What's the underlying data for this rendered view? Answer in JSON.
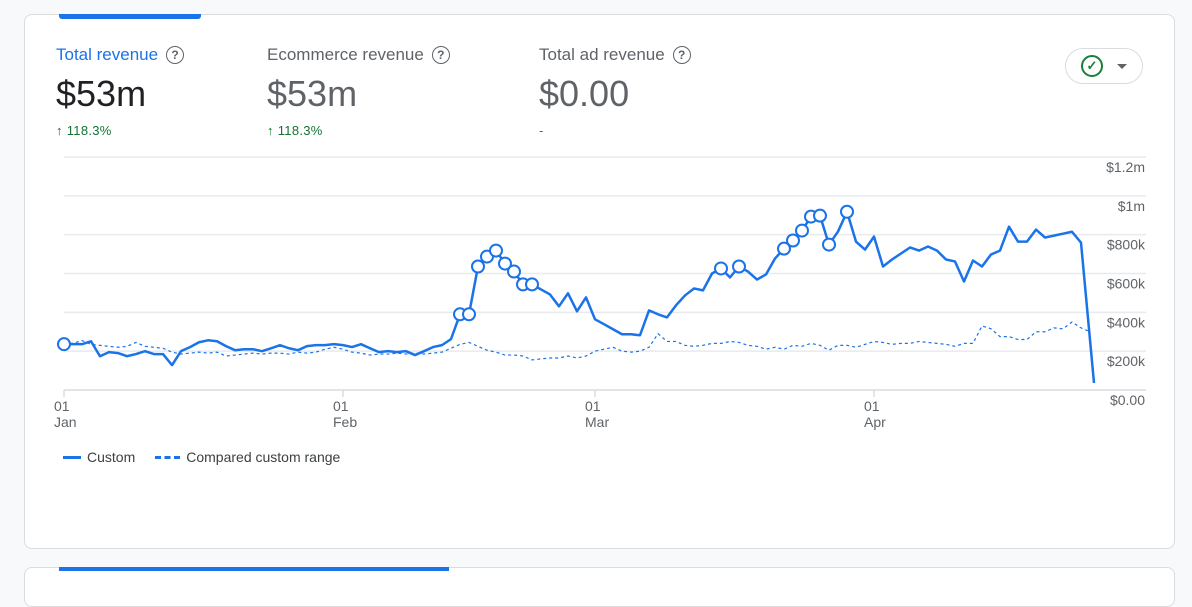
{
  "metrics": [
    {
      "label": "Total revenue",
      "value": "$53m",
      "change": "118.3%",
      "change_icon": "arrow-up-icon",
      "active": true
    },
    {
      "label": "Ecommerce revenue",
      "value": "$53m",
      "change": "118.3%",
      "change_icon": "arrow-up-icon",
      "active": false
    },
    {
      "label": "Total ad revenue",
      "value": "$0.00",
      "change": "-",
      "active": false
    }
  ],
  "help_glyph": "?",
  "arrow_glyph": "↑",
  "dropdown": {
    "icon": "check-circle-icon",
    "check_glyph": "✓"
  },
  "colors": {
    "accent": "#1a73e8",
    "positive": "#137333",
    "check": "#188038"
  },
  "chart_data": {
    "type": "line",
    "start_date": "Jan 01",
    "x_ticks": [
      {
        "day": "01",
        "month": "Jan",
        "index": 0
      },
      {
        "day": "01",
        "month": "Feb",
        "index": 31
      },
      {
        "day": "01",
        "month": "Mar",
        "index": 59
      },
      {
        "day": "01",
        "month": "Apr",
        "index": 90
      }
    ],
    "y_ticks": [
      "$0.00",
      "$200k",
      "$400k",
      "$600k",
      "$800k",
      "$1m",
      "$1.2m"
    ],
    "y_tick_values": [
      0,
      200000,
      400000,
      600000,
      800000,
      1000000,
      1200000
    ],
    "ylim": [
      0,
      1200000
    ],
    "y_axis_position": "right",
    "grid": true,
    "legend_position": "bottom-left",
    "series": [
      {
        "name": "Custom",
        "style": "solid",
        "color": "#1a73e8",
        "values_k": [
          236,
          236,
          236,
          251,
          174,
          195,
          190,
          174,
          185,
          200,
          185,
          185,
          128,
          200,
          221,
          246,
          256,
          251,
          226,
          205,
          210,
          210,
          200,
          215,
          231,
          215,
          205,
          226,
          231,
          231,
          236,
          231,
          221,
          236,
          215,
          195,
          200,
          195,
          200,
          180,
          200,
          221,
          231,
          262,
          390,
          390,
          636,
          687,
          718,
          651,
          610,
          544,
          544,
          518,
          492,
          431,
          498,
          405,
          477,
          364,
          339,
          313,
          287,
          287,
          282,
          410,
          390,
          374,
          436,
          487,
          523,
          513,
          600,
          626,
          580,
          636,
          610,
          569,
          595,
          677,
          728,
          770,
          821,
          893,
          898,
          749,
          816,
          918,
          764,
          723,
          790,
          636,
          672,
          703,
          734,
          718,
          739,
          718,
          672,
          662,
          559,
          667,
          636,
          698,
          718,
          841,
          764,
          764,
          826,
          785,
          795,
          805,
          815,
          759,
          36
        ],
        "anomaly_indices": [
          0,
          44,
          45,
          46,
          47,
          48,
          49,
          50,
          51,
          52,
          73,
          75,
          80,
          81,
          82,
          83,
          84,
          85,
          87
        ]
      },
      {
        "name": "Compared custom range",
        "style": "dashed",
        "color": "#1a73e8",
        "values_k": [
          240,
          240,
          255,
          235,
          230,
          225,
          220,
          225,
          245,
          225,
          220,
          215,
          195,
          185,
          190,
          195,
          190,
          195,
          175,
          180,
          185,
          190,
          185,
          190,
          190,
          185,
          195,
          190,
          195,
          210,
          220,
          210,
          195,
          190,
          180,
          185,
          185,
          190,
          185,
          190,
          185,
          190,
          195,
          215,
          235,
          245,
          225,
          205,
          195,
          180,
          180,
          175,
          155,
          160,
          165,
          165,
          175,
          165,
          175,
          200,
          210,
          220,
          200,
          195,
          200,
          220,
          290,
          250,
          250,
          230,
          225,
          230,
          240,
          240,
          250,
          245,
          230,
          225,
          210,
          220,
          210,
          230,
          225,
          240,
          230,
          205,
          230,
          230,
          220,
          235,
          250,
          245,
          235,
          240,
          240,
          250,
          245,
          240,
          235,
          225,
          240,
          240,
          330,
          315,
          275,
          275,
          260,
          260,
          300,
          300,
          320,
          315,
          350,
          320,
          300
        ]
      }
    ]
  }
}
